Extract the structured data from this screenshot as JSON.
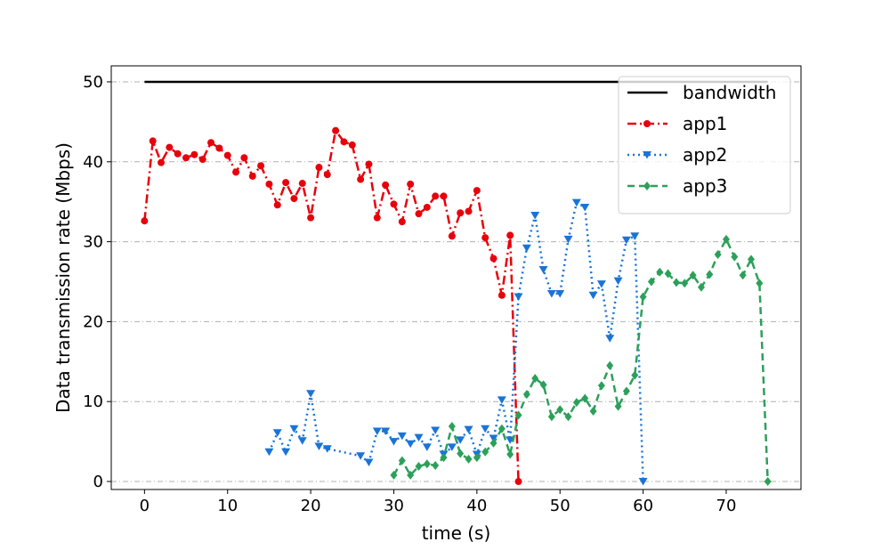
{
  "chart_data": {
    "type": "line",
    "xlabel": "time (s)",
    "ylabel": "Data transmission rate (Mbps)",
    "xlim": [
      -4,
      79
    ],
    "ylim": [
      -1,
      52
    ],
    "x_ticks": [
      0,
      10,
      20,
      30,
      40,
      50,
      60,
      70
    ],
    "y_ticks": [
      0,
      10,
      20,
      30,
      40,
      50
    ],
    "grid": "horizontal dash-dot",
    "legend_position": "top-right",
    "series": [
      {
        "name": "bandwidth",
        "color": "#000000",
        "linestyle": "solid",
        "marker": "none",
        "points": [
          [
            0,
            50
          ],
          [
            75,
            50
          ]
        ]
      },
      {
        "name": "app1",
        "color": "#e8000b",
        "linestyle": "dashdot",
        "marker": "circle",
        "points": [
          [
            0,
            32.6
          ],
          [
            1,
            42.6
          ],
          [
            2,
            39.9
          ],
          [
            3,
            41.8
          ],
          [
            4,
            41.0
          ],
          [
            5,
            40.5
          ],
          [
            6,
            40.9
          ],
          [
            7,
            40.3
          ],
          [
            8,
            42.4
          ],
          [
            9,
            41.7
          ],
          [
            10,
            40.8
          ],
          [
            11,
            38.7
          ],
          [
            12,
            40.5
          ],
          [
            13,
            38.2
          ],
          [
            14,
            39.5
          ],
          [
            15,
            37.2
          ],
          [
            16,
            34.6
          ],
          [
            17,
            37.4
          ],
          [
            18,
            35.4
          ],
          [
            19,
            37.3
          ],
          [
            20,
            33.0
          ],
          [
            21,
            39.3
          ],
          [
            22,
            38.4
          ],
          [
            23,
            43.9
          ],
          [
            24,
            42.5
          ],
          [
            25,
            42.1
          ],
          [
            26,
            37.8
          ],
          [
            27,
            39.7
          ],
          [
            28,
            33.0
          ],
          [
            29,
            37.1
          ],
          [
            30,
            34.7
          ],
          [
            31,
            32.5
          ],
          [
            32,
            37.2
          ],
          [
            33,
            33.5
          ],
          [
            34,
            34.3
          ],
          [
            35,
            35.7
          ],
          [
            36,
            35.7
          ],
          [
            37,
            30.7
          ],
          [
            38,
            33.6
          ],
          [
            39,
            33.8
          ],
          [
            40,
            36.4
          ],
          [
            41,
            30.5
          ],
          [
            42,
            27.9
          ],
          [
            43,
            23.3
          ],
          [
            44,
            30.8
          ],
          [
            45,
            0.0
          ]
        ]
      },
      {
        "name": "app2",
        "color": "#1a74d6",
        "linestyle": "dotted",
        "marker": "triangle-down",
        "points": [
          [
            15,
            3.7
          ],
          [
            16,
            6.1
          ],
          [
            17,
            3.7
          ],
          [
            18,
            6.6
          ],
          [
            19,
            5.1
          ],
          [
            20,
            11.0
          ],
          [
            21,
            4.4
          ],
          [
            22,
            4.1
          ],
          [
            26,
            3.2
          ],
          [
            27,
            2.4
          ],
          [
            28,
            6.3
          ],
          [
            29,
            6.3
          ],
          [
            30,
            5.0
          ],
          [
            31,
            5.7
          ],
          [
            32,
            4.7
          ],
          [
            33,
            5.5
          ],
          [
            34,
            4.3
          ],
          [
            35,
            6.4
          ],
          [
            36,
            3.4
          ],
          [
            37,
            4.3
          ],
          [
            38,
            5.2
          ],
          [
            39,
            6.5
          ],
          [
            40,
            3.4
          ],
          [
            41,
            6.6
          ],
          [
            42,
            5.4
          ],
          [
            43,
            10.2
          ],
          [
            44,
            5.2
          ],
          [
            45,
            23.1
          ],
          [
            46,
            29.2
          ],
          [
            47,
            33.3
          ],
          [
            48,
            26.5
          ],
          [
            49,
            23.5
          ],
          [
            50,
            23.5
          ],
          [
            51,
            30.3
          ],
          [
            52,
            34.9
          ],
          [
            53,
            34.3
          ],
          [
            54,
            23.3
          ],
          [
            55,
            24.7
          ],
          [
            56,
            17.9
          ],
          [
            57,
            25.1
          ],
          [
            58,
            30.2
          ],
          [
            59,
            30.7
          ],
          [
            60,
            0.0
          ]
        ]
      },
      {
        "name": "app3",
        "color": "#2ca05a",
        "linestyle": "dashed",
        "marker": "diamond",
        "points": [
          [
            30,
            0.8
          ],
          [
            31,
            2.6
          ],
          [
            32,
            0.8
          ],
          [
            33,
            1.9
          ],
          [
            34,
            2.2
          ],
          [
            35,
            2.0
          ],
          [
            36,
            3.0
          ],
          [
            37,
            6.9
          ],
          [
            38,
            3.5
          ],
          [
            39,
            2.8
          ],
          [
            40,
            3.0
          ],
          [
            41,
            3.7
          ],
          [
            42,
            4.8
          ],
          [
            43,
            6.6
          ],
          [
            44,
            3.4
          ],
          [
            45,
            8.3
          ],
          [
            46,
            10.9
          ],
          [
            47,
            12.9
          ],
          [
            48,
            12.1
          ],
          [
            49,
            8.1
          ],
          [
            50,
            9.0
          ],
          [
            51,
            8.1
          ],
          [
            52,
            9.9
          ],
          [
            53,
            10.4
          ],
          [
            54,
            8.8
          ],
          [
            55,
            12.0
          ],
          [
            56,
            14.5
          ],
          [
            57,
            9.4
          ],
          [
            58,
            11.3
          ],
          [
            59,
            13.3
          ],
          [
            60,
            23.1
          ],
          [
            61,
            25.0
          ],
          [
            62,
            26.2
          ],
          [
            63,
            26.0
          ],
          [
            64,
            24.9
          ],
          [
            65,
            24.8
          ],
          [
            66,
            25.8
          ],
          [
            67,
            24.3
          ],
          [
            68,
            25.9
          ],
          [
            69,
            28.4
          ],
          [
            70,
            30.3
          ],
          [
            71,
            28.1
          ],
          [
            72,
            25.8
          ],
          [
            73,
            27.8
          ],
          [
            74,
            24.8
          ],
          [
            75,
            0.0
          ]
        ]
      }
    ]
  }
}
